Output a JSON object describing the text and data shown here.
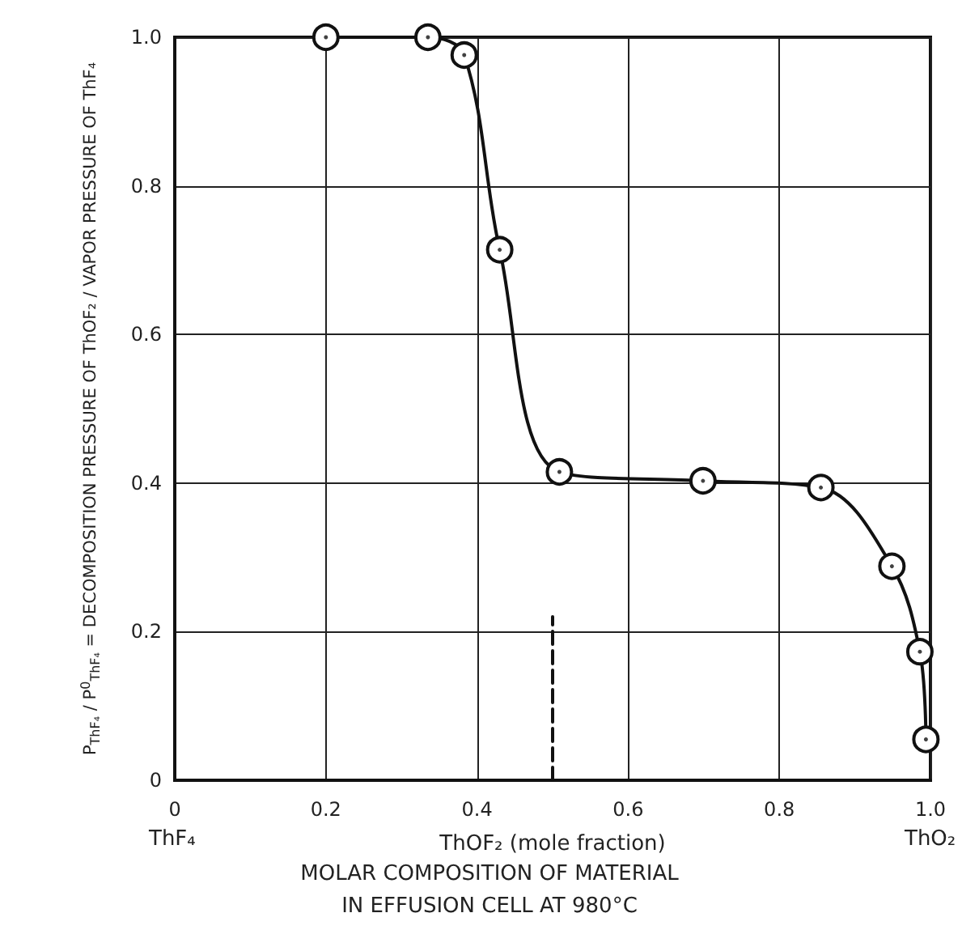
{
  "chart_data": {
    "type": "line",
    "title": "MOLAR COMPOSITION OF MATERIAL\nIN EFFUSION CELL AT 980°C",
    "xlabel": "ThOF₂ (mole fraction)",
    "ylabel": "P$_{ThF₄}$ / P$^{0}$$_{ThF₄}$ = DECOMPOSITION PRESSURE OF ThOF₂ / VAPOR PRESSURE OF ThF₄",
    "annotations": [
      "ThF₄",
      "ThO₂"
    ],
    "series": [
      {
        "color": "#111111",
        "marker": "circle",
        "line_style": "solid",
        "x": [
          0.2,
          0.335,
          0.383,
          0.43,
          0.509,
          0.699,
          0.855,
          0.949,
          0.986,
          0.994
        ],
        "values": [
          1.0,
          1.0,
          0.976,
          0.714,
          0.415,
          0.403,
          0.394,
          0.288,
          0.173,
          0.055
        ]
      },
      {
        "color": "#111111",
        "marker": "none",
        "line_style": "dashed",
        "x": [
          0.5,
          0.5
        ],
        "values": [
          0,
          0.22
        ]
      }
    ],
    "xlim": [
      0,
      1
    ],
    "xticks": [
      0,
      0.2,
      0.4,
      0.6,
      0.8,
      {
        "value": 1,
        "label": "1.0"
      }
    ],
    "ylim": [
      0,
      1
    ],
    "yticks": [
      0,
      0.2,
      0.4,
      0.6,
      0.8,
      {
        "value": 1,
        "label": "1.0"
      }
    ],
    "grid": true
  }
}
